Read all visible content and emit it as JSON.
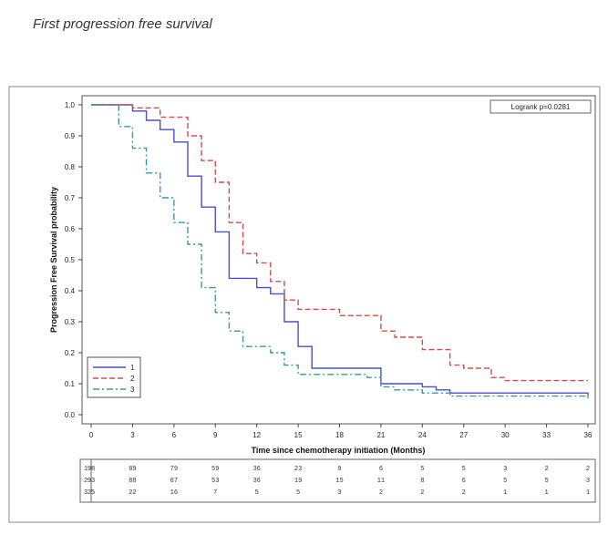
{
  "page_title": "First progression free survival",
  "watermark_text": "",
  "chart_data": {
    "type": "line",
    "step": true,
    "title": "",
    "xlabel": "Time since chemotherapy initiation (Months)",
    "ylabel": "Progression Free Survival probability",
    "xlim": [
      0,
      36
    ],
    "ylim": [
      0,
      1
    ],
    "xticks": [
      0,
      3,
      6,
      9,
      12,
      15,
      18,
      21,
      24,
      27,
      30,
      33,
      36
    ],
    "yticks": [
      0.0,
      0.1,
      0.2,
      0.3,
      0.4,
      0.5,
      0.6,
      0.7,
      0.8,
      0.9,
      1.0
    ],
    "annotation": "Logrank p=0.0281",
    "legend_placement": "bottom-left",
    "series": [
      {
        "name": "1",
        "color": "#4a4ed1",
        "dash": "solid",
        "x": [
          0,
          3,
          4,
          5,
          6,
          7,
          8,
          9,
          10,
          12,
          13,
          14,
          15,
          16,
          20,
          21,
          24,
          25,
          26,
          36
        ],
        "y": [
          1.0,
          0.98,
          0.95,
          0.92,
          0.88,
          0.77,
          0.67,
          0.59,
          0.44,
          0.41,
          0.39,
          0.3,
          0.22,
          0.15,
          0.15,
          0.1,
          0.09,
          0.08,
          0.07,
          0.06
        ]
      },
      {
        "name": "2",
        "color": "#d84a4a",
        "dash": "dashed",
        "x": [
          0,
          3,
          5,
          7,
          8,
          9,
          10,
          11,
          12,
          13,
          14,
          15,
          18,
          21,
          22,
          24,
          26,
          27,
          29,
          30,
          36
        ],
        "y": [
          1.0,
          0.99,
          0.96,
          0.9,
          0.82,
          0.75,
          0.62,
          0.52,
          0.49,
          0.43,
          0.37,
          0.34,
          0.32,
          0.27,
          0.25,
          0.21,
          0.16,
          0.15,
          0.12,
          0.11,
          0.11
        ]
      },
      {
        "name": "3",
        "color": "#3a9a9a",
        "dash": "dashdot",
        "x": [
          0,
          2,
          3,
          4,
          5,
          6,
          7,
          8,
          9,
          10,
          11,
          13,
          14,
          15,
          18,
          20,
          21,
          22,
          24,
          26,
          36
        ],
        "y": [
          1.0,
          0.93,
          0.86,
          0.78,
          0.7,
          0.62,
          0.55,
          0.41,
          0.33,
          0.27,
          0.22,
          0.2,
          0.16,
          0.13,
          0.13,
          0.12,
          0.09,
          0.08,
          0.07,
          0.06,
          0.05
        ]
      }
    ],
    "at_risk": {
      "labels": [
        "1",
        "2",
        "3"
      ],
      "rows": [
        [
          "98",
          "89",
          "79",
          "59",
          "36",
          "23",
          "9",
          "6",
          "5",
          "5",
          "3",
          "2",
          "2"
        ],
        [
          "93",
          "88",
          "67",
          "53",
          "36",
          "19",
          "15",
          "11",
          "8",
          "6",
          "5",
          "5",
          "3"
        ],
        [
          "25",
          "22",
          "16",
          "7",
          "5",
          "5",
          "3",
          "2",
          "2",
          "2",
          "1",
          "1",
          "1"
        ]
      ]
    }
  }
}
